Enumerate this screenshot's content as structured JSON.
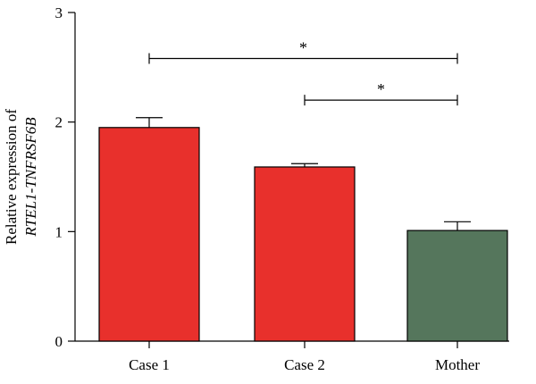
{
  "chart_data": {
    "type": "bar",
    "categories": [
      "Case 1",
      "Case 2",
      "Mother"
    ],
    "values": [
      1.95,
      1.59,
      1.01
    ],
    "errors": [
      0.09,
      0.03,
      0.08
    ],
    "bar_colors": [
      "#e8302c",
      "#e8302c",
      "#55765c"
    ],
    "ylabel_line1": "Relative expression of",
    "ylabel_line2": "RTEL1-TNFRSF6B",
    "xlabel": "",
    "title": "",
    "ylim": [
      0,
      3
    ],
    "yticks": [
      0,
      1,
      2,
      3
    ],
    "grid": false,
    "significance": [
      {
        "from": 0,
        "to": 2,
        "label": "*",
        "y": 2.58
      },
      {
        "from": 1,
        "to": 2,
        "label": "*",
        "y": 2.2
      }
    ]
  }
}
